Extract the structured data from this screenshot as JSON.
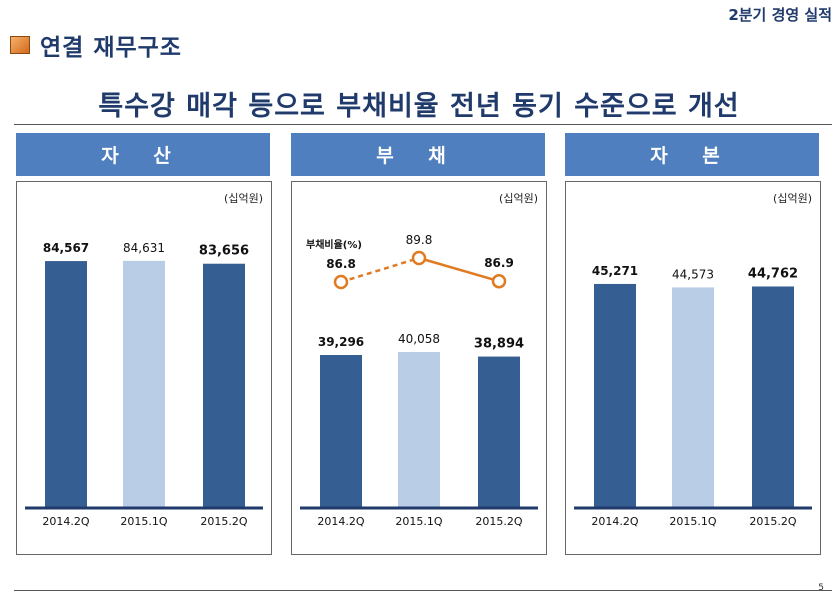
{
  "header": {
    "top_right": "2분기 경영 실적"
  },
  "section": {
    "title": "연결 재무구조"
  },
  "headline": "특수강 매각 등으로 부채비율 전년 동기 수준으로 개선",
  "page_number": "5",
  "colors": {
    "dark_bar": "#355f93",
    "light_bar": "#b9cde6",
    "header_bg": "#4f7fbf",
    "ratio_line": "#e07b22"
  },
  "chart_data": [
    {
      "type": "bar",
      "title": "자 산",
      "unit": "(십억원)",
      "categories": [
        "2014.2Q",
        "2015.1Q",
        "2015.2Q"
      ],
      "values": [
        84567,
        84631,
        83656
      ],
      "value_labels": [
        "84,567",
        "84,631",
        "83,656"
      ],
      "ylim": [
        0,
        100000
      ]
    },
    {
      "type": "bar",
      "title": "부 채",
      "unit": "(십억원)",
      "categories": [
        "2014.2Q",
        "2015.1Q",
        "2015.2Q"
      ],
      "values": [
        39296,
        40058,
        38894
      ],
      "value_labels": [
        "39,296",
        "40,058",
        "38,894"
      ],
      "ylim": [
        0,
        75000
      ],
      "ratio": {
        "name": "부채비율(%)",
        "values": [
          86.8,
          89.8,
          86.9
        ],
        "value_labels": [
          "86.8",
          "89.8",
          "86.9"
        ]
      }
    },
    {
      "type": "bar",
      "title": "자 본",
      "unit": "(십억원)",
      "categories": [
        "2014.2Q",
        "2015.1Q",
        "2015.2Q"
      ],
      "values": [
        45271,
        44573,
        44762
      ],
      "value_labels": [
        "45,271",
        "44,573",
        "44,762"
      ],
      "ylim": [
        0,
        59000
      ]
    }
  ]
}
